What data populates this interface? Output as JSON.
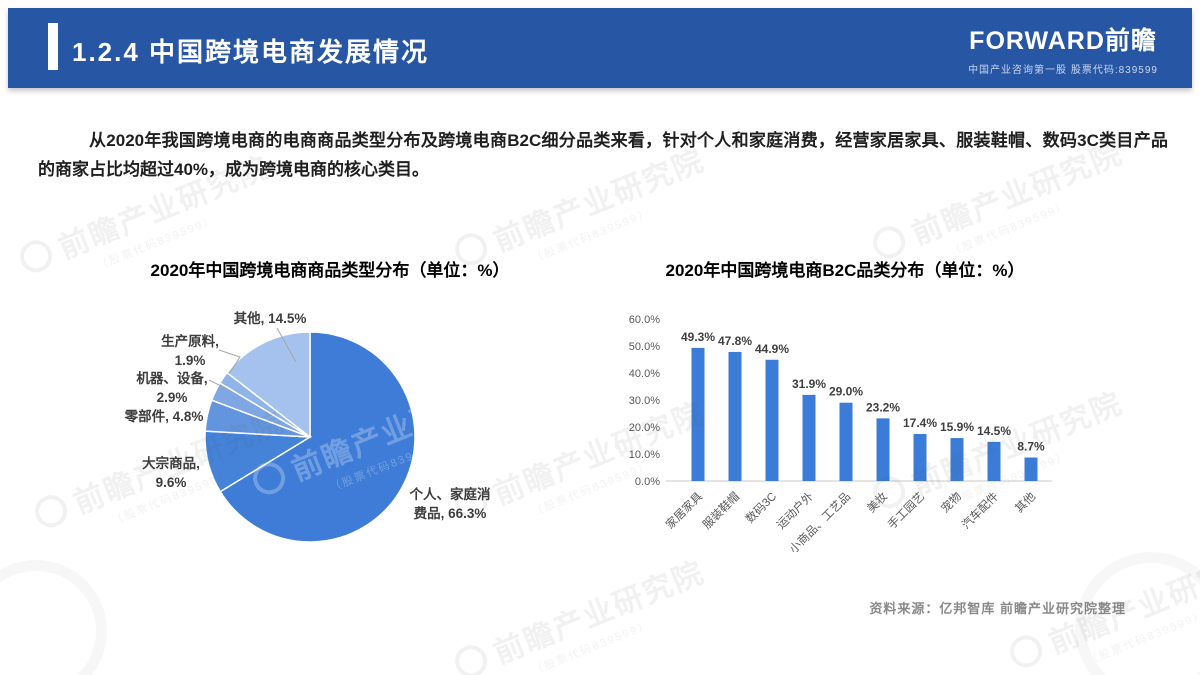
{
  "header": {
    "section_title": "1.2.4 中国跨境电商发展情况",
    "logo": {
      "brand": "FORWARD前瞻",
      "tagline": "中国产业咨询第一股  股票代码:839599"
    }
  },
  "body_paragraph": "从2020年我国跨境电商的电商商品类型分布及跨境电商B2C细分品类来看，针对个人和家庭消费，经营家居家具、服装鞋帽、数码3C类目产品的商家占比均超过40%，成为跨境电商的核心类目。",
  "source_note": "资料来源：亿邦智库 前瞻产业研究院整理",
  "watermark": {
    "text": "前瞻产业研究院",
    "subtext": "（股票代码839599）"
  },
  "colors": {
    "header_bg": "#2756A5",
    "bar_blue": "#3B7CD8",
    "axis_gray": "#C9C9C9"
  },
  "chart_data": [
    {
      "type": "pie",
      "title": "2020年中国跨境电商商品类型分布（单位：%）",
      "slices": [
        {
          "label": "个人、家庭消费品",
          "value": 66.3,
          "color": "#3E7CD7"
        },
        {
          "label": "大宗商品",
          "value": 9.6,
          "color": "#4583D9"
        },
        {
          "label": "零部件",
          "value": 4.8,
          "color": "#6395DE"
        },
        {
          "label": "机器、设备",
          "value": 2.9,
          "color": "#7EA7E3"
        },
        {
          "label": "生产原料",
          "value": 1.9,
          "color": "#8FB4E8"
        },
        {
          "label": "其他",
          "value": 14.5,
          "color": "#A5C2EE"
        }
      ],
      "legend_position": "data-labels",
      "start_angle_deg": 0
    },
    {
      "type": "bar",
      "title": "2020年中国跨境电商B2C品类分布（单位：%）",
      "categories": [
        "家居家具",
        "服装鞋帽",
        "数码3C",
        "运动户外",
        "小商品、工艺品",
        "美妆",
        "手工园艺",
        "宠物",
        "汽车配件",
        "其他"
      ],
      "values": [
        49.3,
        47.8,
        44.9,
        31.9,
        29.0,
        23.2,
        17.4,
        15.9,
        14.5,
        8.7
      ],
      "bar_color": "#3B7CD8",
      "xlabel": "",
      "ylabel": "",
      "ylim": [
        0,
        60
      ],
      "yticks": [
        "0.0%",
        "10.0%",
        "20.0%",
        "30.0%",
        "40.0%",
        "50.0%",
        "60.0%"
      ],
      "grid": false
    }
  ]
}
